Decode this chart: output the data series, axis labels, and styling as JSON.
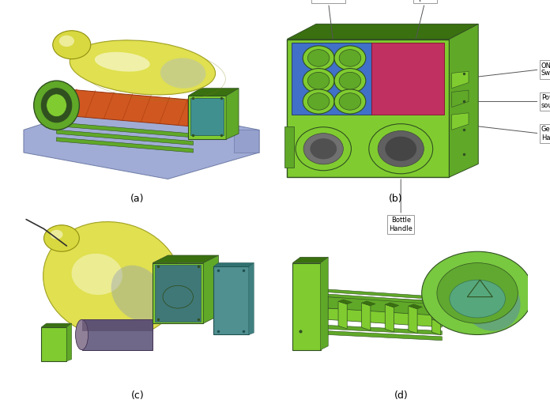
{
  "figure_width": 6.96,
  "figure_height": 5.2,
  "dpi": 100,
  "background_color": "#ffffff",
  "subplot_labels": [
    "(a)",
    "(b)",
    "(c)",
    "(d)"
  ],
  "label_fontsize": 9,
  "colors": {
    "green_bright": "#80cc30",
    "green_mid": "#60a828",
    "green_dark": "#3a7010",
    "green_light": "#a0e050",
    "blue_panel": "#4472c4",
    "pink_panel": "#c0396b",
    "orange_body": "#e06828",
    "yellow_hi": "#f0f080",
    "yellow_mid": "#d8d840",
    "blue_base": "#7888c0",
    "teal_box": "#409090",
    "purple_cyl": "#707090",
    "white": "#ffffff",
    "gray_ann": "#dddddd"
  }
}
